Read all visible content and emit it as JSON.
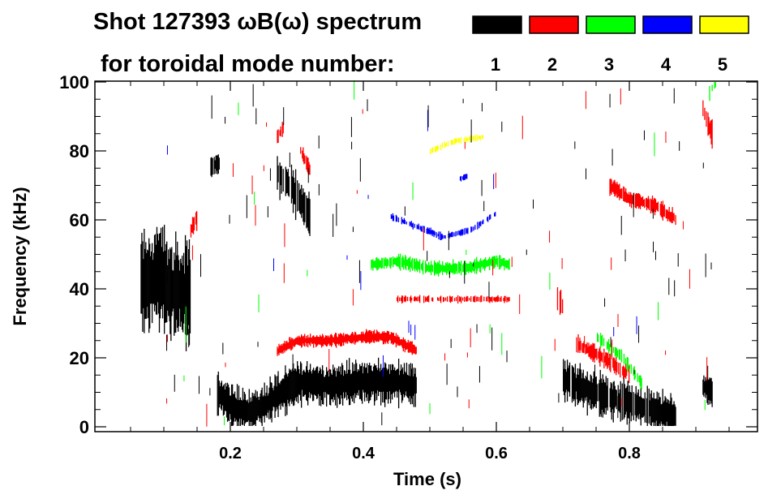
{
  "chart_data": {
    "type": "heatmap",
    "title_line1": "Shot 127393 ωB(ω) spectrum",
    "title_line2": "for toroidal mode number:",
    "xlabel": "Time (s)",
    "ylabel": "Frequency (kHz)",
    "xlim": [
      0.0,
      1.0
    ],
    "ylim": [
      -1.5,
      100
    ],
    "xticks": [
      {
        "value": 0.2,
        "label": "0.2"
      },
      {
        "value": 0.4,
        "label": "0.4"
      },
      {
        "value": 0.6,
        "label": "0.6"
      },
      {
        "value": 0.8,
        "label": "0.8"
      }
    ],
    "yticks": [
      {
        "value": 0,
        "label": "0"
      },
      {
        "value": 20,
        "label": "20"
      },
      {
        "value": 40,
        "label": "40"
      },
      {
        "value": 60,
        "label": "60"
      },
      {
        "value": 80,
        "label": "80"
      },
      {
        "value": 100,
        "label": "100"
      }
    ],
    "legend": [
      {
        "mode": "1",
        "color": "#000000"
      },
      {
        "mode": "2",
        "color": "#ff0000"
      },
      {
        "mode": "3",
        "color": "#00ff00"
      },
      {
        "mode": "4",
        "color": "#0000ff"
      },
      {
        "mode": "5",
        "color": "#ffff00"
      }
    ],
    "features": [
      {
        "mode": "1",
        "points": [
          [
            0.065,
            42
          ],
          [
            0.09,
            44
          ],
          [
            0.11,
            40
          ],
          [
            0.14,
            38
          ]
        ],
        "spread": 14,
        "density": 1.0
      },
      {
        "mode": "1",
        "points": [
          [
            0.18,
            10
          ],
          [
            0.2,
            6
          ],
          [
            0.23,
            4
          ],
          [
            0.27,
            9
          ],
          [
            0.3,
            13
          ],
          [
            0.35,
            12
          ],
          [
            0.4,
            13
          ],
          [
            0.45,
            13
          ],
          [
            0.48,
            12
          ]
        ],
        "spread": 6,
        "density": 1.0
      },
      {
        "mode": "1",
        "points": [
          [
            0.27,
            73
          ],
          [
            0.29,
            70
          ],
          [
            0.31,
            64
          ],
          [
            0.32,
            60
          ]
        ],
        "spread": 6,
        "density": 0.8
      },
      {
        "mode": "1",
        "points": [
          [
            0.17,
            75
          ],
          [
            0.185,
            77
          ]
        ],
        "spread": 3,
        "density": 0.8
      },
      {
        "mode": "1",
        "points": [
          [
            0.7,
            14
          ],
          [
            0.73,
            11
          ],
          [
            0.78,
            8
          ],
          [
            0.83,
            5
          ],
          [
            0.87,
            3
          ]
        ],
        "spread": 6,
        "density": 0.9
      },
      {
        "mode": "1",
        "points": [
          [
            0.91,
            12
          ],
          [
            0.925,
            10
          ]
        ],
        "spread": 4,
        "density": 0.9
      },
      {
        "mode": "2",
        "points": [
          [
            0.27,
            22
          ],
          [
            0.3,
            25
          ],
          [
            0.35,
            25
          ],
          [
            0.4,
            26
          ],
          [
            0.44,
            26
          ],
          [
            0.48,
            22
          ]
        ],
        "spread": 1.8,
        "density": 1.0
      },
      {
        "mode": "2",
        "points": [
          [
            0.14,
            57
          ],
          [
            0.15,
            61
          ]
        ],
        "spread": 3,
        "density": 0.9
      },
      {
        "mode": "2",
        "points": [
          [
            0.27,
            84
          ],
          [
            0.28,
            87
          ]
        ],
        "spread": 2,
        "density": 0.9
      },
      {
        "mode": "2",
        "points": [
          [
            0.305,
            80
          ],
          [
            0.32,
            74
          ]
        ],
        "spread": 2,
        "density": 0.9
      },
      {
        "mode": "2",
        "points": [
          [
            0.77,
            70
          ],
          [
            0.8,
            66
          ],
          [
            0.84,
            64
          ],
          [
            0.87,
            60
          ]
        ],
        "spread": 2.5,
        "density": 0.9
      },
      {
        "mode": "2",
        "points": [
          [
            0.91,
            92
          ],
          [
            0.925,
            84
          ]
        ],
        "spread": 4,
        "density": 0.8
      },
      {
        "mode": "2",
        "points": [
          [
            0.69,
            38
          ],
          [
            0.7,
            35
          ]
        ],
        "spread": 4,
        "density": 0.7
      },
      {
        "mode": "2",
        "points": [
          [
            0.72,
            24
          ],
          [
            0.76,
            20
          ],
          [
            0.8,
            15
          ]
        ],
        "spread": 2.5,
        "density": 0.8
      },
      {
        "mode": "2",
        "points": [
          [
            0.45,
            37
          ],
          [
            0.55,
            37
          ],
          [
            0.62,
            37
          ]
        ],
        "spread": 1,
        "density": 0.6
      },
      {
        "mode": "3",
        "points": [
          [
            0.41,
            47
          ],
          [
            0.45,
            48
          ],
          [
            0.5,
            46
          ],
          [
            0.55,
            46
          ],
          [
            0.6,
            48
          ],
          [
            0.62,
            47
          ]
        ],
        "spread": 2,
        "density": 0.9
      },
      {
        "mode": "3",
        "points": [
          [
            0.75,
            26
          ],
          [
            0.79,
            20
          ],
          [
            0.82,
            12
          ]
        ],
        "spread": 2,
        "density": 0.6
      },
      {
        "mode": "3",
        "points": [
          [
            0.92,
            97
          ],
          [
            0.93,
            100
          ]
        ],
        "spread": 2,
        "density": 0.7
      },
      {
        "mode": "4",
        "points": [
          [
            0.44,
            61
          ],
          [
            0.48,
            58
          ],
          [
            0.52,
            55
          ],
          [
            0.56,
            57
          ],
          [
            0.6,
            62
          ]
        ],
        "spread": 1,
        "density": 0.6
      },
      {
        "mode": "4",
        "points": [
          [
            0.545,
            72
          ],
          [
            0.56,
            73
          ]
        ],
        "spread": 1,
        "density": 0.7
      },
      {
        "mode": "5",
        "points": [
          [
            0.5,
            80
          ],
          [
            0.54,
            83
          ],
          [
            0.58,
            84
          ]
        ],
        "spread": 1,
        "density": 0.6
      }
    ]
  }
}
